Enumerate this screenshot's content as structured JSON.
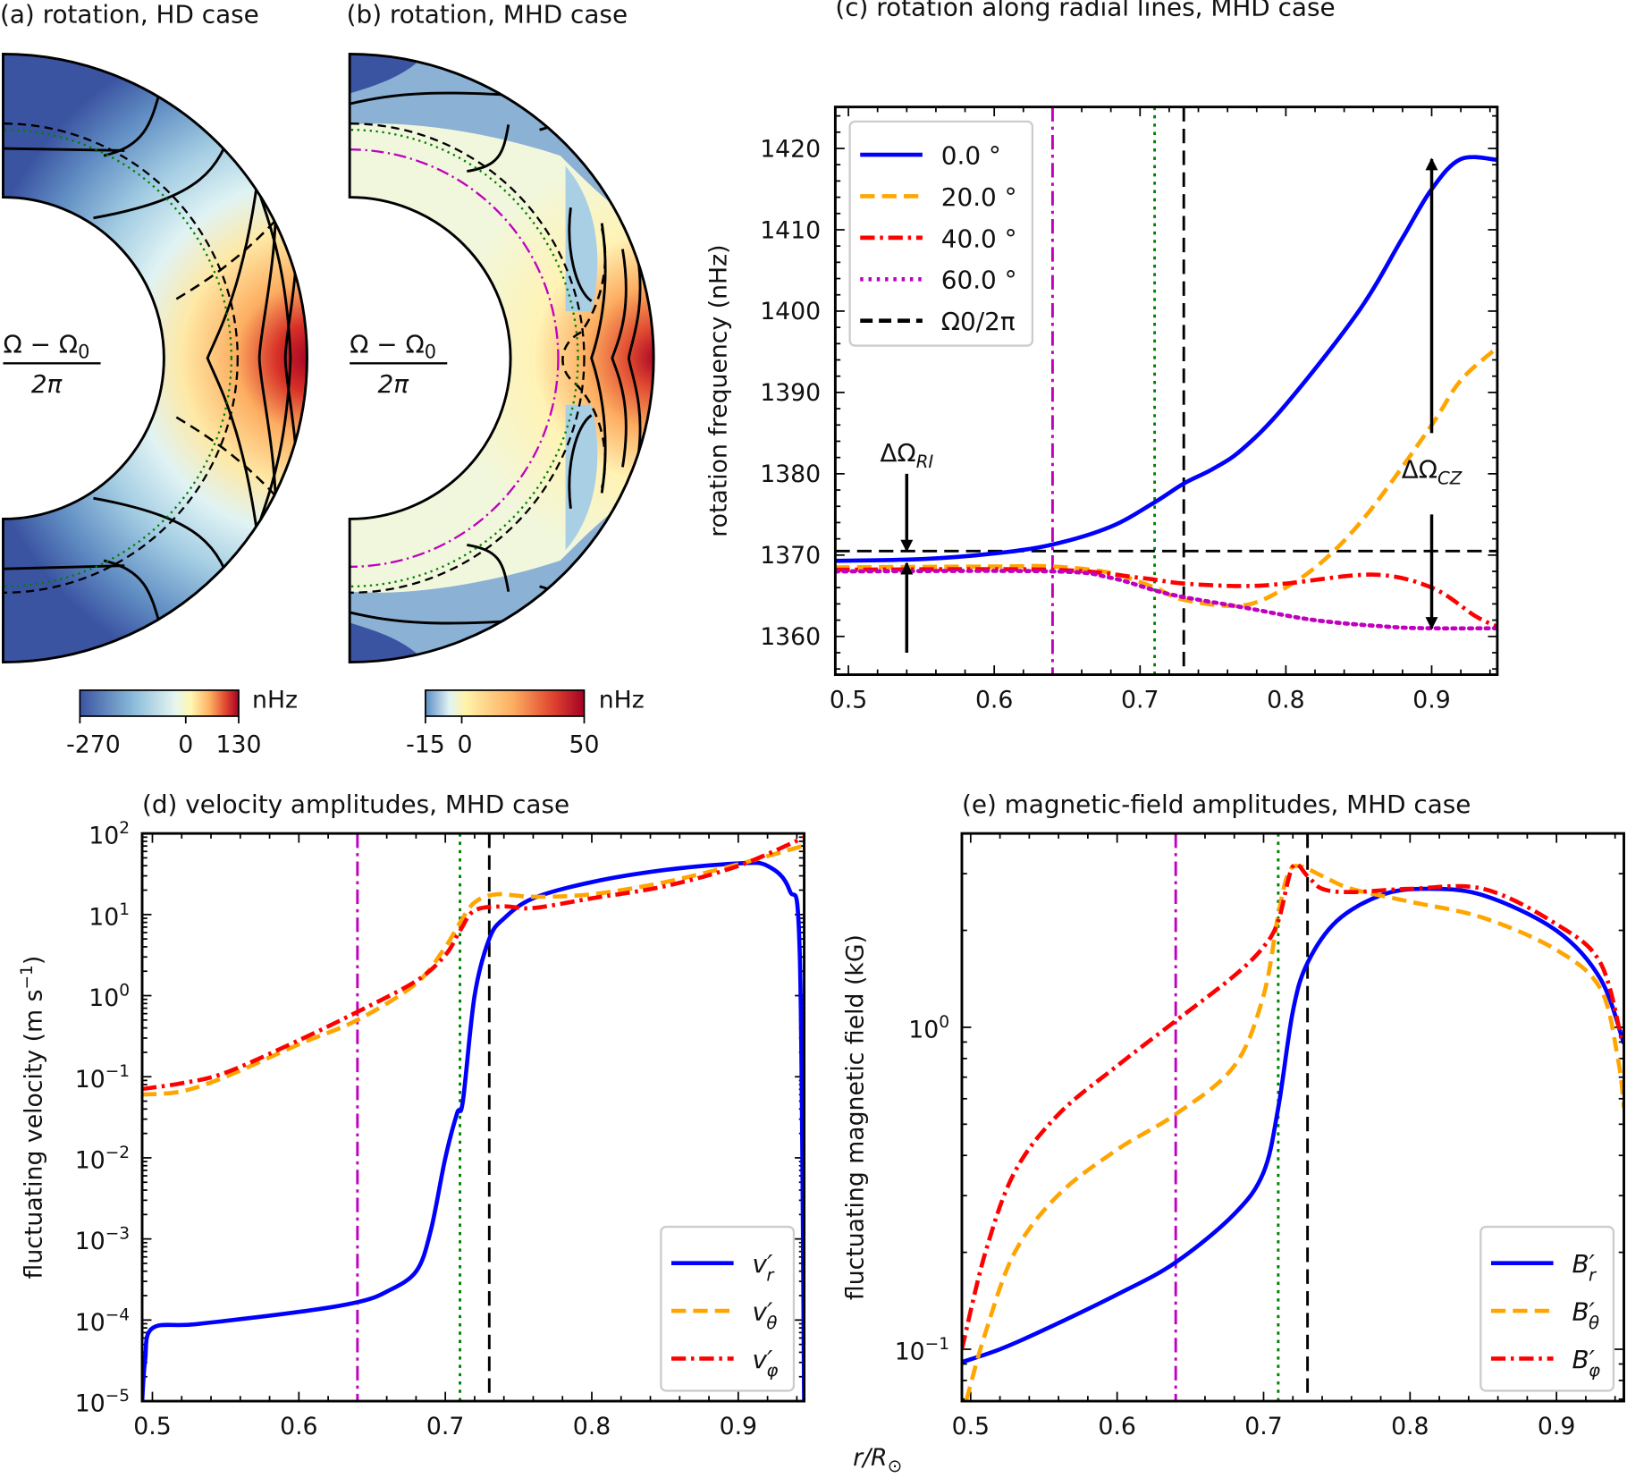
{
  "panels": {
    "a": {
      "title": "(a) rotation, HD case",
      "frac_num": "Ω − Ω",
      "frac_num_sub": "0",
      "frac_den": "2π",
      "colorbar": {
        "unit": "nHz",
        "ticks": [
          "-270",
          "0",
          "130"
        ],
        "range": [
          -270,
          130
        ],
        "cmap": "RdYlBu_r"
      }
    },
    "b": {
      "title": "(b) rotation, MHD case",
      "frac_num": "Ω − Ω",
      "frac_num_sub": "0",
      "frac_den": "2π",
      "colorbar": {
        "unit": "nHz",
        "ticks": [
          "-15",
          "0",
          "50"
        ],
        "range": [
          -15,
          50
        ],
        "cmap": "RdYlBu_r"
      }
    }
  },
  "shared_xlabel": {
    "base": "r/R",
    "sub": "⊙"
  },
  "colors": {
    "blue": "#0000ff",
    "orange": "#ffa500",
    "red": "#ff0000",
    "magenta": "#bf00bf",
    "green": "#008000",
    "black": "#000000"
  },
  "chart_data": [
    {
      "id": "c",
      "type": "line",
      "title": "(c) rotation along radial lines, MHD case",
      "xlabel": "",
      "ylabel": "rotation frequency (nHz)",
      "xlim": [
        0.491,
        0.945
      ],
      "ylim": [
        1355.3,
        1425.1
      ],
      "yscale": "linear",
      "xticks": [
        0.5,
        0.6,
        0.7,
        0.8,
        0.9
      ],
      "xtick_labels": [
        "0.5",
        "0.6",
        "0.7",
        "0.8",
        "0.9"
      ],
      "yticks": [
        1360,
        1370,
        1380,
        1390,
        1400,
        1410,
        1420
      ],
      "ytick_labels": [
        "1360",
        "1370",
        "1380",
        "1390",
        "1400",
        "1410",
        "1420"
      ],
      "legend_position": "upper-left",
      "series": [
        {
          "name": "0.0 °",
          "color": "#0000ff",
          "style": "solid",
          "x": [
            0.491,
            0.55,
            0.6,
            0.64,
            0.68,
            0.71,
            0.73,
            0.75,
            0.77,
            0.8,
            0.85,
            0.88,
            0.9,
            0.92,
            0.945
          ],
          "y": [
            1369.3,
            1369.5,
            1370.2,
            1371.3,
            1373.5,
            1376.5,
            1378.8,
            1380.6,
            1383,
            1388.5,
            1400,
            1409,
            1415,
            1418.7,
            1418.6
          ]
        },
        {
          "name": "20.0 °",
          "color": "#ffa500",
          "style": "dashed",
          "x": [
            0.491,
            0.6,
            0.64,
            0.68,
            0.71,
            0.73,
            0.77,
            0.8,
            0.83,
            0.86,
            0.9,
            0.92,
            0.945
          ],
          "y": [
            1368.5,
            1368.6,
            1368.6,
            1367.8,
            1366.0,
            1364.5,
            1363.8,
            1366,
            1370,
            1376,
            1386,
            1391.5,
            1395.5
          ]
        },
        {
          "name": "40.0 °",
          "color": "#ff0000",
          "style": "dashdot",
          "x": [
            0.491,
            0.64,
            0.7,
            0.73,
            0.77,
            0.8,
            0.86,
            0.9,
            0.93,
            0.945
          ],
          "y": [
            1368.2,
            1368.2,
            1367.2,
            1366.5,
            1366.2,
            1366.5,
            1367.6,
            1366,
            1362.5,
            1361.2
          ]
        },
        {
          "name": "60.0 °",
          "color": "#bf00bf",
          "style": "dotted",
          "x": [
            0.491,
            0.64,
            0.68,
            0.72,
            0.77,
            0.82,
            0.87,
            0.9,
            0.945
          ],
          "y": [
            1368.0,
            1368.0,
            1367.2,
            1365.2,
            1363.6,
            1362,
            1361.2,
            1361,
            1361
          ]
        }
      ],
      "hlines": [
        {
          "name": "Ω0/2π",
          "y": 1370.5,
          "color": "#000000",
          "style": "dashed"
        }
      ],
      "vlines": [
        {
          "x": 0.64,
          "color": "#bf00bf",
          "style": "dashdot"
        },
        {
          "x": 0.71,
          "color": "#008000",
          "style": "dotted"
        },
        {
          "x": 0.73,
          "color": "#000000",
          "style": "dashed"
        }
      ],
      "annotations": [
        {
          "text": "ΔΩ",
          "sub": "RI",
          "x": 0.54,
          "y": 1381.5,
          "arrows": [
            {
              "x": 0.54,
              "from": 1380,
              "to": 1370.5
            },
            {
              "x": 0.54,
              "from": 1358,
              "to": 1369
            }
          ]
        },
        {
          "text": "ΔΩ",
          "sub": "CZ",
          "x": 0.9,
          "y": 1379.5,
          "arrows": [
            {
              "x": 0.9,
              "from": 1385,
              "to": 1418.7
            },
            {
              "x": 0.9,
              "from": 1375,
              "to": 1361
            }
          ]
        }
      ]
    },
    {
      "id": "d",
      "type": "line",
      "title": "(d) velocity amplitudes, MHD case",
      "xlabel": "",
      "ylabel": "fluctuating velocity (m s",
      "ylabel_sup": "−1",
      "ylabel_end": ")",
      "xlim": [
        0.493,
        0.945
      ],
      "ylim": [
        1e-05,
        100
      ],
      "yscale": "log",
      "xticks": [
        0.5,
        0.6,
        0.7,
        0.8,
        0.9
      ],
      "xtick_labels": [
        "0.5",
        "0.6",
        "0.7",
        "0.8",
        "0.9"
      ],
      "yticks_exp": [
        -5,
        -4,
        -3,
        -2,
        -1,
        0,
        1,
        2
      ],
      "ytick_labels": [
        {
          "base": "10",
          "exp": "−5"
        },
        {
          "base": "10",
          "exp": "−4"
        },
        {
          "base": "10",
          "exp": "−3"
        },
        {
          "base": "10",
          "exp": "−2"
        },
        {
          "base": "10",
          "exp": "−1"
        },
        {
          "base": "10",
          "exp": "0"
        },
        {
          "base": "10",
          "exp": "1"
        },
        {
          "base": "10",
          "exp": "2"
        }
      ],
      "legend_position": "lower-right",
      "series": [
        {
          "name": {
            "base": "v′",
            "sub": "r"
          },
          "color": "#0000ff",
          "style": "solid",
          "x": [
            0.493,
            0.495,
            0.5,
            0.53,
            0.6,
            0.64,
            0.66,
            0.68,
            0.69,
            0.7,
            0.708,
            0.712,
            0.72,
            0.73,
            0.74,
            0.76,
            0.8,
            0.85,
            0.9,
            0.92,
            0.935,
            0.942,
            0.945
          ],
          "log10_y": [
            -5,
            -4.5,
            -4.1,
            -4.05,
            -3.9,
            -3.78,
            -3.65,
            -3.4,
            -2.9,
            -2.0,
            -1.45,
            -1.3,
            0.0,
            0.7,
            0.95,
            1.2,
            1.4,
            1.55,
            1.63,
            1.6,
            1.3,
            0.5,
            -5
          ]
        },
        {
          "name": {
            "base": "v′",
            "sub": "θ"
          },
          "color": "#ffa500",
          "style": "dashed",
          "x": [
            0.493,
            0.52,
            0.55,
            0.6,
            0.64,
            0.68,
            0.7,
            0.71,
            0.72,
            0.735,
            0.76,
            0.8,
            0.85,
            0.9,
            0.945
          ],
          "log10_y": [
            -1.22,
            -1.18,
            -1.0,
            -0.6,
            -0.3,
            0.15,
            0.6,
            0.9,
            1.15,
            1.25,
            1.22,
            1.25,
            1.4,
            1.62,
            1.85
          ]
        },
        {
          "name": {
            "base": "v′",
            "sub": "φ"
          },
          "color": "#ff0000",
          "style": "dashdot",
          "x": [
            0.493,
            0.52,
            0.55,
            0.6,
            0.64,
            0.68,
            0.7,
            0.71,
            0.72,
            0.74,
            0.76,
            0.8,
            0.85,
            0.9,
            0.945
          ],
          "log10_y": [
            -1.15,
            -1.08,
            -0.95,
            -0.55,
            -0.2,
            0.18,
            0.5,
            0.8,
            1.05,
            1.1,
            1.08,
            1.2,
            1.35,
            1.6,
            1.95
          ]
        }
      ],
      "vlines": [
        {
          "x": 0.64,
          "color": "#bf00bf",
          "style": "dashdot"
        },
        {
          "x": 0.71,
          "color": "#008000",
          "style": "dotted"
        },
        {
          "x": 0.73,
          "color": "#000000",
          "style": "dashed"
        }
      ]
    },
    {
      "id": "e",
      "type": "line",
      "title": "(e) magnetic-field amplitudes, MHD case",
      "xlabel": "",
      "ylabel": "fluctuating magnetic field (kG)",
      "xlim": [
        0.494,
        0.946
      ],
      "ylim": [
        0.069,
        4.0
      ],
      "yscale": "log",
      "xticks": [
        0.5,
        0.6,
        0.7,
        0.8,
        0.9
      ],
      "xtick_labels": [
        "0.5",
        "0.6",
        "0.7",
        "0.8",
        "0.9"
      ],
      "yticks_exp": [
        -1,
        0
      ],
      "ytick_labels": [
        {
          "base": "10",
          "exp": "−1"
        },
        {
          "base": "10",
          "exp": "0"
        }
      ],
      "legend_position": "lower-right",
      "series": [
        {
          "name": {
            "base": "B′",
            "sub": "r"
          },
          "color": "#0000ff",
          "style": "solid",
          "x": [
            0.494,
            0.52,
            0.55,
            0.6,
            0.64,
            0.68,
            0.7,
            0.71,
            0.72,
            0.73,
            0.75,
            0.78,
            0.81,
            0.85,
            0.9,
            0.93,
            0.946
          ],
          "log10_y": [
            -1.04,
            -1.0,
            -0.94,
            -0.83,
            -0.73,
            -0.58,
            -0.45,
            -0.25,
            0.05,
            0.2,
            0.33,
            0.41,
            0.43,
            0.41,
            0.3,
            0.15,
            -0.05
          ]
        },
        {
          "name": {
            "base": "B′",
            "sub": "θ"
          },
          "color": "#ffa500",
          "style": "dashed",
          "x": [
            0.497,
            0.51,
            0.53,
            0.56,
            0.6,
            0.64,
            0.68,
            0.7,
            0.71,
            0.717,
            0.725,
            0.74,
            0.76,
            0.8,
            0.85,
            0.9,
            0.93,
            0.942,
            0.946
          ],
          "log10_y": [
            -1.16,
            -0.95,
            -0.7,
            -0.52,
            -0.38,
            -0.27,
            -0.12,
            0.1,
            0.35,
            0.48,
            0.5,
            0.47,
            0.43,
            0.39,
            0.34,
            0.24,
            0.12,
            -0.1,
            -0.25
          ]
        },
        {
          "name": {
            "base": "B′",
            "sub": "φ"
          },
          "color": "#ff0000",
          "style": "dashdot",
          "x": [
            0.494,
            0.51,
            0.53,
            0.56,
            0.6,
            0.64,
            0.68,
            0.7,
            0.71,
            0.72,
            0.73,
            0.74,
            0.76,
            0.8,
            0.85,
            0.9,
            0.93,
            0.945
          ],
          "log10_y": [
            -1.0,
            -0.7,
            -0.45,
            -0.27,
            -0.12,
            0.02,
            0.16,
            0.25,
            0.33,
            0.5,
            0.47,
            0.43,
            0.42,
            0.43,
            0.43,
            0.32,
            0.2,
            -0.05
          ]
        }
      ],
      "vlines": [
        {
          "x": 0.64,
          "color": "#bf00bf",
          "style": "dashdot"
        },
        {
          "x": 0.71,
          "color": "#008000",
          "style": "dotted"
        },
        {
          "x": 0.73,
          "color": "#000000",
          "style": "dashed"
        }
      ]
    }
  ]
}
